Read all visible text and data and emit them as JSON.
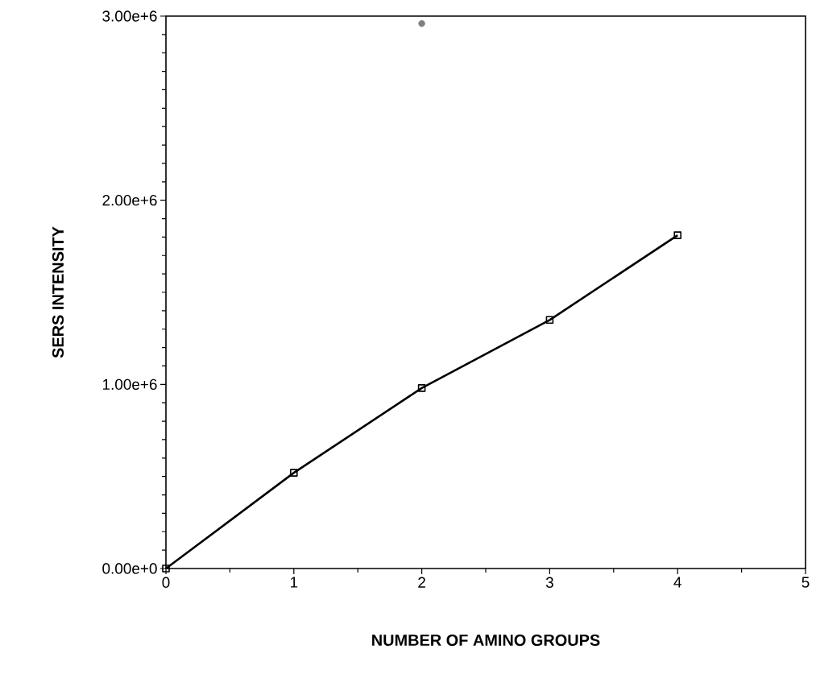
{
  "chart_data": {
    "type": "line",
    "xlabel": "NUMBER OF AMINO GROUPS",
    "ylabel": "SERS INTENSITY",
    "xlim": [
      0,
      5
    ],
    "xticks": [
      0,
      1,
      2,
      3,
      4,
      5
    ],
    "ylim": [
      0,
      3000000
    ],
    "yticks": [
      {
        "value": 0,
        "label": "0.00e+0"
      },
      {
        "value": 1000000,
        "label": "1.00e+6"
      },
      {
        "value": 2000000,
        "label": "2.00e+6"
      },
      {
        "value": 3000000,
        "label": "3.00e+6"
      }
    ],
    "grid": false,
    "series": [
      {
        "color": "#000000",
        "marker": "square",
        "line_style": "solid",
        "x": [
          0,
          1,
          2,
          3,
          4
        ],
        "values": [
          0,
          520000,
          980000,
          1350000,
          1810000
        ]
      },
      {
        "type": "scatter",
        "color": "#808080",
        "marker": "circle",
        "x": [
          2
        ],
        "values": [
          2960000
        ]
      }
    ]
  }
}
